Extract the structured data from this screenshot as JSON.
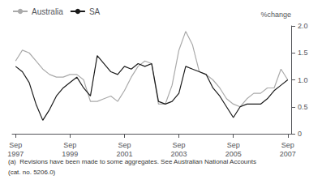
{
  "chart_data": {
    "type": "line",
    "ylabel": "%change",
    "annotations": [
      "(a)  Revisions have been made to some aggregates. See Australian National Accounts",
      "(cat. no. 5206.0)"
    ],
    "categories": [
      "Sep\n1997",
      null,
      null,
      null,
      null,
      null,
      null,
      null,
      "Sep\n1999",
      null,
      null,
      null,
      null,
      null,
      null,
      null,
      "Sep\n2001",
      null,
      null,
      null,
      null,
      null,
      null,
      null,
      "Sep\n2003",
      null,
      null,
      null,
      null,
      null,
      null,
      null,
      "Sep\n2005",
      null,
      null,
      null,
      null,
      null,
      null,
      null,
      "Sep\n2007"
    ],
    "series": [
      {
        "name": "Australia",
        "color": "#aaaaaa",
        "values": [
          1.35,
          1.55,
          1.5,
          1.35,
          1.2,
          1.1,
          1.05,
          1.05,
          1.1,
          1.1,
          1.0,
          0.6,
          0.6,
          0.65,
          0.7,
          0.6,
          0.8,
          1.05,
          1.25,
          1.35,
          1.3,
          0.55,
          0.55,
          0.9,
          1.55,
          1.9,
          1.65,
          1.15,
          1.1,
          1.0,
          0.85,
          0.65,
          0.55,
          0.5,
          0.65,
          0.75,
          0.75,
          0.85,
          0.85,
          1.2,
          1.0
        ]
      },
      {
        "name": "SA",
        "color": "#1a1a1a",
        "values": [
          1.25,
          1.15,
          0.95,
          0.55,
          0.25,
          0.45,
          0.7,
          0.85,
          0.95,
          1.05,
          0.85,
          0.7,
          1.45,
          1.3,
          1.15,
          1.1,
          1.25,
          1.2,
          1.3,
          1.25,
          1.3,
          0.6,
          0.55,
          0.6,
          0.75,
          1.25,
          1.2,
          1.15,
          1.1,
          0.85,
          0.7,
          0.5,
          0.3,
          0.5,
          0.55,
          0.55,
          0.55,
          0.65,
          0.8,
          0.9,
          1.0
        ]
      }
    ],
    "ylim": [
      0,
      2.0
    ],
    "yticks": [
      0,
      0.5,
      {
        "value": 1.0,
        "label": "1.0"
      },
      1.5,
      {
        "value": 2.0,
        "label": "2.0"
      }
    ],
    "grid": false,
    "legend": "upper left"
  }
}
